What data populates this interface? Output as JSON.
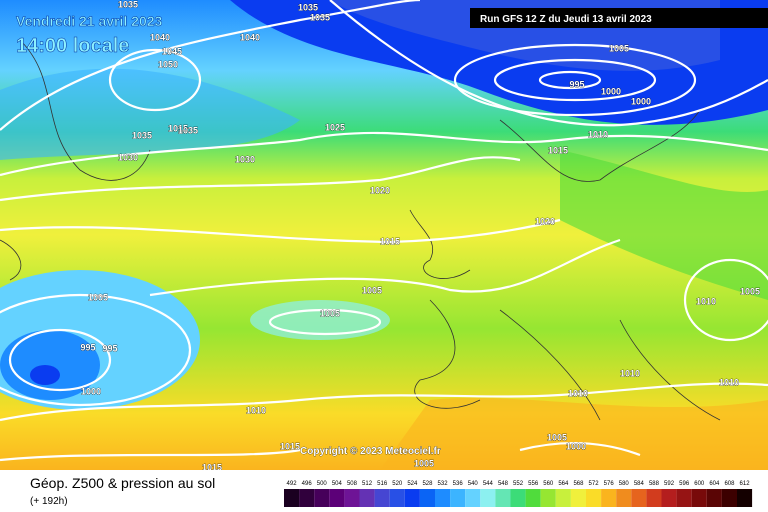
{
  "header": {
    "date": "Vendredi 21 avril 2023",
    "time": "14:00 locale",
    "run": "Run GFS 12 Z du Jeudi 13 avril 2023"
  },
  "footer": {
    "title": "Géop. Z500 & pression au sol",
    "lead": "(+ 192h)",
    "copyright": "Copyright © 2023 Meteociel.fr"
  },
  "legend": {
    "values": [
      492,
      496,
      500,
      504,
      508,
      512,
      516,
      520,
      524,
      528,
      532,
      536,
      540,
      544,
      548,
      552,
      556,
      560,
      564,
      568,
      572,
      576,
      580,
      584,
      588,
      592,
      596,
      600,
      604,
      608,
      612
    ],
    "colors": [
      "#1a0020",
      "#30003c",
      "#46005a",
      "#5c0078",
      "#6e1496",
      "#6432b4",
      "#4646d2",
      "#2850e6",
      "#0a3cf0",
      "#0a64f5",
      "#1e8cff",
      "#3cb4ff",
      "#64d2ff",
      "#8cf0f0",
      "#64e6b4",
      "#3cdc78",
      "#50dc3c",
      "#96e632",
      "#c8f03c",
      "#f0f03c",
      "#fadc28",
      "#fab41e",
      "#f08c1e",
      "#e6641e",
      "#d23c1e",
      "#b41e1e",
      "#961414",
      "#780a0a",
      "#5a0505",
      "#3c0000",
      "#140000"
    ]
  },
  "isobar_labels": [
    1035,
    1035,
    1035,
    1040,
    1045,
    1050,
    1040,
    1035,
    1015,
    1035,
    1030,
    1030,
    1025,
    1020,
    1015,
    1005,
    995,
    1000,
    1000,
    1010,
    1015,
    1020,
    1005,
    995,
    995,
    1000,
    1005,
    1005,
    1010,
    1010,
    1010,
    1010,
    1010,
    1005,
    1005,
    1000,
    1005,
    1015,
    1015
  ]
}
